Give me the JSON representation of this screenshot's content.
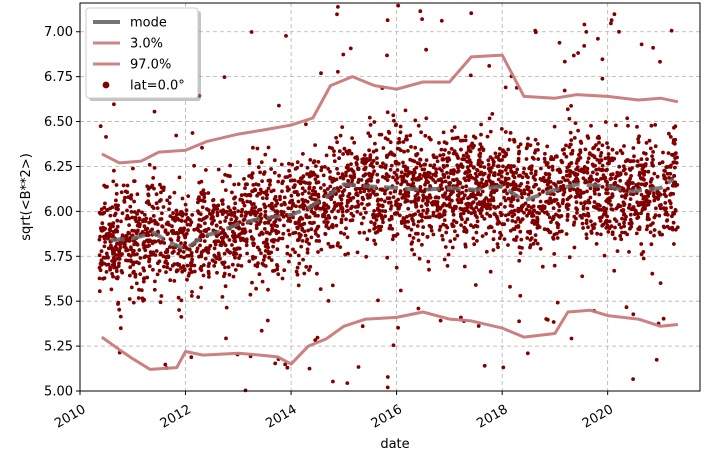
{
  "chart_data": {
    "type": "scatter",
    "xlabel": "date",
    "ylabel": "sqrt(<B**2>)",
    "xlim": [
      "2010-01-01",
      "2021-10-01"
    ],
    "ylim": [
      5.0,
      7.16
    ],
    "x_ticks": [
      {
        "date": "2010-01-01",
        "label": "2010"
      },
      {
        "date": "2012-01-01",
        "label": "2012"
      },
      {
        "date": "2014-01-01",
        "label": "2014"
      },
      {
        "date": "2016-01-01",
        "label": "2016"
      },
      {
        "date": "2018-01-01",
        "label": "2018"
      },
      {
        "date": "2020-01-01",
        "label": "2020"
      }
    ],
    "y_ticks": [
      "5.00",
      "5.25",
      "5.50",
      "5.75",
      "6.00",
      "6.25",
      "6.50",
      "6.75",
      "7.00"
    ],
    "grid": true,
    "legend_position": "top-left",
    "colors": {
      "mode": "#666666",
      "p3": "#c87a7a",
      "p97": "#c87a7a",
      "scatter": "#800000"
    },
    "series": [
      {
        "name": "mode",
        "type": "line",
        "style": "dashed",
        "points": [
          [
            "2010-08-01",
            5.84
          ],
          [
            "2011-01-01",
            5.85
          ],
          [
            "2011-06-01",
            5.88
          ],
          [
            "2011-09-01",
            5.83
          ],
          [
            "2012-01-01",
            5.79
          ],
          [
            "2012-05-01",
            5.86
          ],
          [
            "2012-09-01",
            5.89
          ],
          [
            "2013-01-01",
            5.93
          ],
          [
            "2013-06-01",
            5.96
          ],
          [
            "2014-01-01",
            5.98
          ],
          [
            "2014-05-01",
            6.02
          ],
          [
            "2014-09-01",
            6.08
          ],
          [
            "2015-01-01",
            6.15
          ],
          [
            "2015-06-01",
            6.14
          ],
          [
            "2016-01-01",
            6.13
          ],
          [
            "2016-07-01",
            6.12
          ],
          [
            "2017-01-01",
            6.13
          ],
          [
            "2017-07-01",
            6.12
          ],
          [
            "2018-01-01",
            6.14
          ],
          [
            "2018-06-01",
            6.06
          ],
          [
            "2019-01-01",
            6.12
          ],
          [
            "2019-06-01",
            6.15
          ],
          [
            "2020-01-01",
            6.14
          ],
          [
            "2020-06-01",
            6.11
          ],
          [
            "2021-01-01",
            6.13
          ],
          [
            "2021-04-01",
            6.18
          ]
        ]
      },
      {
        "name": "3.0%",
        "type": "line",
        "style": "solid",
        "points": [
          [
            "2010-06-01",
            5.3
          ],
          [
            "2010-10-01",
            5.23
          ],
          [
            "2011-01-01",
            5.18
          ],
          [
            "2011-05-01",
            5.12
          ],
          [
            "2011-11-01",
            5.13
          ],
          [
            "2012-01-01",
            5.22
          ],
          [
            "2012-05-01",
            5.2
          ],
          [
            "2013-01-01",
            5.21
          ],
          [
            "2013-06-01",
            5.2
          ],
          [
            "2013-10-01",
            5.19
          ],
          [
            "2014-01-01",
            5.15
          ],
          [
            "2014-05-01",
            5.25
          ],
          [
            "2014-09-01",
            5.29
          ],
          [
            "2015-01-01",
            5.36
          ],
          [
            "2015-06-01",
            5.4
          ],
          [
            "2016-01-01",
            5.41
          ],
          [
            "2016-07-01",
            5.44
          ],
          [
            "2017-01-01",
            5.4
          ],
          [
            "2017-06-01",
            5.39
          ],
          [
            "2018-01-01",
            5.35
          ],
          [
            "2018-06-01",
            5.3
          ],
          [
            "2019-01-01",
            5.32
          ],
          [
            "2019-04-01",
            5.44
          ],
          [
            "2019-09-01",
            5.45
          ],
          [
            "2020-01-01",
            5.42
          ],
          [
            "2020-08-01",
            5.4
          ],
          [
            "2021-01-01",
            5.36
          ],
          [
            "2021-05-01",
            5.37
          ]
        ]
      },
      {
        "name": "97.0%",
        "type": "line",
        "style": "solid",
        "points": [
          [
            "2010-06-01",
            6.32
          ],
          [
            "2010-10-01",
            6.27
          ],
          [
            "2011-03-01",
            6.28
          ],
          [
            "2011-07-01",
            6.33
          ],
          [
            "2012-01-01",
            6.34
          ],
          [
            "2012-06-01",
            6.39
          ],
          [
            "2013-01-01",
            6.43
          ],
          [
            "2013-06-01",
            6.45
          ],
          [
            "2014-01-01",
            6.48
          ],
          [
            "2014-06-01",
            6.52
          ],
          [
            "2014-10-01",
            6.7
          ],
          [
            "2015-03-01",
            6.75
          ],
          [
            "2015-08-01",
            6.7
          ],
          [
            "2016-01-01",
            6.68
          ],
          [
            "2016-07-01",
            6.72
          ],
          [
            "2017-01-01",
            6.72
          ],
          [
            "2017-06-01",
            6.86
          ],
          [
            "2018-01-01",
            6.87
          ],
          [
            "2018-06-01",
            6.64
          ],
          [
            "2019-01-01",
            6.63
          ],
          [
            "2019-06-01",
            6.65
          ],
          [
            "2020-01-01",
            6.64
          ],
          [
            "2020-08-01",
            6.62
          ],
          [
            "2021-01-01",
            6.63
          ],
          [
            "2021-05-01",
            6.61
          ]
        ]
      },
      {
        "name": "lat=0.0$^\\circ$",
        "legend_label": "lat=0.0°",
        "type": "scatter",
        "generator": {
          "x_start": "2010-05-15",
          "x_end": "2021-05-01",
          "count": 3400,
          "center_from": "mode",
          "spread": 0.28,
          "outlier_rate": 0.04,
          "seed": 7
        }
      }
    ]
  }
}
